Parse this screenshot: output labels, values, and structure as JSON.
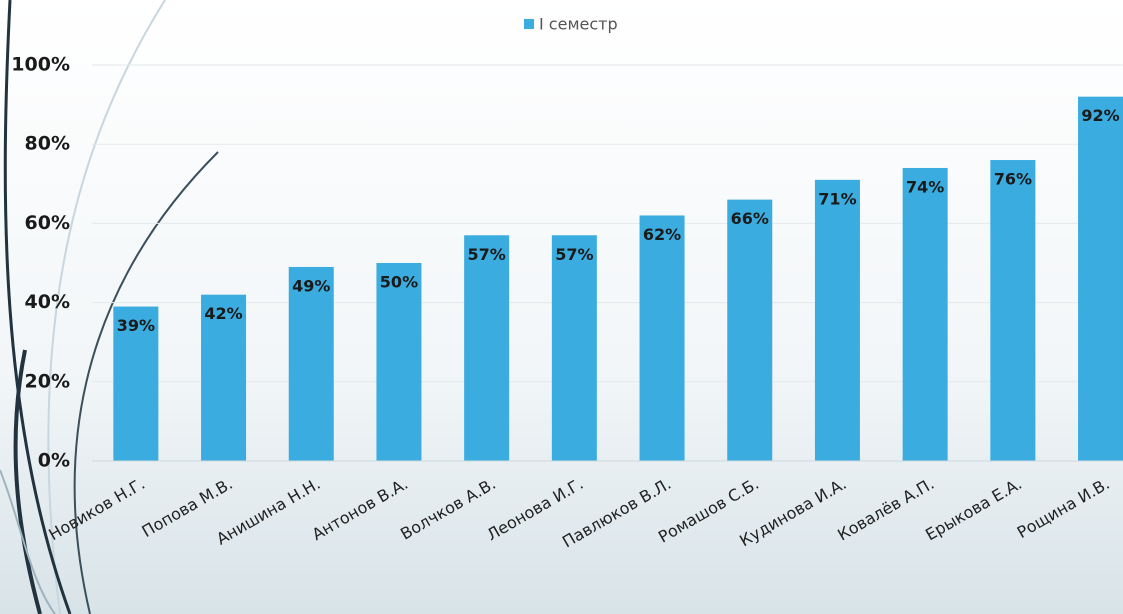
{
  "chart_data": {
    "type": "bar",
    "categories": [
      "Новиков Н.Г.",
      "Попова М.В.",
      "Анишина Н.Н.",
      "Антонов В.А.",
      "Волчков А.В.",
      "Леонова И.Г.",
      "Павлюков В.Л.",
      "Ромашов С.Б.",
      "Кудинова И.А.",
      "Ковалёв А.П.",
      "Ерыкова Е.А.",
      "Рощина И.В."
    ],
    "series": [
      {
        "name": "I семестр",
        "color": "#3aacdf",
        "values": [
          39,
          42,
          49,
          50,
          57,
          57,
          62,
          66,
          71,
          74,
          76,
          92
        ],
        "value_labels": [
          "39%",
          "42%",
          "49%",
          "50%",
          "57%",
          "57%",
          "62%",
          "66%",
          "71%",
          "74%",
          "76%",
          "92%"
        ]
      }
    ],
    "ylim": [
      0,
      100
    ],
    "yticks": [
      {
        "value": 0,
        "label": "0%"
      },
      {
        "value": 20,
        "label": "20%"
      },
      {
        "value": 40,
        "label": "40%"
      },
      {
        "value": 60,
        "label": "60%"
      },
      {
        "value": 80,
        "label": "80%"
      },
      {
        "value": 100,
        "label": "100%"
      }
    ],
    "grid": true
  }
}
